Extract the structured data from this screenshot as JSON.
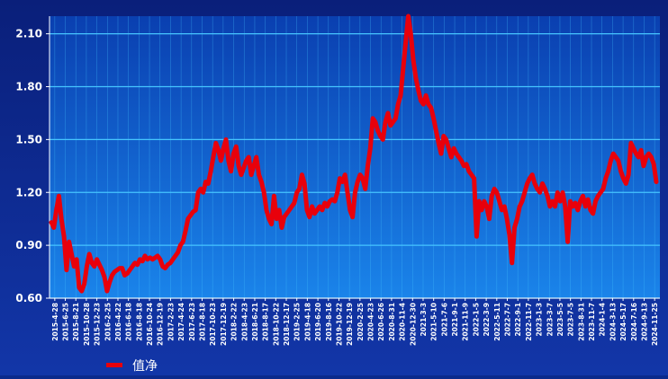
{
  "chart_data": {
    "type": "line",
    "title": "",
    "xlabel": "",
    "ylabel": "",
    "ylim": [
      0.6,
      2.2
    ],
    "y_ticks": [
      0.6,
      0.9,
      1.2,
      1.5,
      1.8,
      2.1
    ],
    "y_tick_labels": [
      "0.60",
      "0.90",
      "1.20",
      "1.50",
      "1.80",
      "2.10"
    ],
    "x_tick_labels": [
      "2015-4-28",
      "2015-6-25",
      "2015-8-21",
      "2015-10-28",
      "2015-12-23",
      "2016-2-25",
      "2016-4-22",
      "2016-6-18",
      "2016-8-18",
      "2016-10-24",
      "2016-12-19",
      "2017-2-23",
      "2017-4-24",
      "2017-6-23",
      "2017-8-18",
      "2017-10-23",
      "2017-12-19",
      "2018-2-22",
      "2018-4-23",
      "2018-6-21",
      "2018-8-17",
      "2018-10-22",
      "2018-12-17",
      "2019-2-25",
      "2019-4-18",
      "2019-6-20",
      "2019-8-16",
      "2019-10-22",
      "2019-12-19",
      "2020-2-25",
      "2020-4-23",
      "2020-6-26",
      "2020-8-31",
      "2020-11-4",
      "2020-12-30",
      "2021-3-3",
      "2021-5-10",
      "2021-7-6",
      "2021-9-1",
      "2021-11-9",
      "2022-1-5",
      "2022-3-9",
      "2022-5-11",
      "2022-7-7",
      "2022-9-1",
      "2022-11-7",
      "2023-1-3",
      "2023-3-7",
      "2023-5-5",
      "2023-7-5",
      "2023-8-31",
      "2023-11-7",
      "2024-1-4",
      "2024-3-13",
      "2024-5-17",
      "2024-7-16",
      "2024-9-13",
      "2024-11-25"
    ],
    "series": [
      {
        "name": "值净",
        "color": "#e8000b",
        "values": [
          1.03,
          1.0,
          1.1,
          1.18,
          1.05,
          0.95,
          0.76,
          0.92,
          0.85,
          0.78,
          0.82,
          0.66,
          0.64,
          0.68,
          0.78,
          0.85,
          0.8,
          0.78,
          0.82,
          0.79,
          0.76,
          0.72,
          0.64,
          0.69,
          0.73,
          0.75,
          0.76,
          0.77,
          0.77,
          0.73,
          0.74,
          0.76,
          0.78,
          0.8,
          0.79,
          0.82,
          0.81,
          0.84,
          0.82,
          0.83,
          0.82,
          0.83,
          0.84,
          0.82,
          0.78,
          0.77,
          0.79,
          0.8,
          0.82,
          0.84,
          0.86,
          0.9,
          0.92,
          0.98,
          1.05,
          1.07,
          1.09,
          1.1,
          1.2,
          1.22,
          1.2,
          1.26,
          1.25,
          1.32,
          1.4,
          1.48,
          1.44,
          1.38,
          1.45,
          1.5,
          1.38,
          1.32,
          1.42,
          1.46,
          1.35,
          1.3,
          1.34,
          1.38,
          1.4,
          1.3,
          1.35,
          1.4,
          1.3,
          1.26,
          1.2,
          1.1,
          1.05,
          1.02,
          1.18,
          1.05,
          1.1,
          1.0,
          1.06,
          1.08,
          1.1,
          1.12,
          1.14,
          1.2,
          1.22,
          1.3,
          1.25,
          1.1,
          1.06,
          1.12,
          1.08,
          1.1,
          1.12,
          1.1,
          1.14,
          1.12,
          1.15,
          1.16,
          1.15,
          1.2,
          1.28,
          1.26,
          1.3,
          1.2,
          1.1,
          1.06,
          1.2,
          1.26,
          1.3,
          1.28,
          1.22,
          1.35,
          1.45,
          1.62,
          1.6,
          1.55,
          1.52,
          1.5,
          1.6,
          1.65,
          1.58,
          1.6,
          1.62,
          1.7,
          1.75,
          1.9,
          2.05,
          2.2,
          2.1,
          1.95,
          1.85,
          1.78,
          1.72,
          1.7,
          1.75,
          1.7,
          1.68,
          1.62,
          1.55,
          1.48,
          1.42,
          1.52,
          1.5,
          1.45,
          1.4,
          1.45,
          1.42,
          1.4,
          1.38,
          1.35,
          1.36,
          1.32,
          1.3,
          1.28,
          0.95,
          1.15,
          1.1,
          1.15,
          1.12,
          1.05,
          1.18,
          1.22,
          1.2,
          1.15,
          1.1,
          1.12,
          1.05,
          0.96,
          0.8,
          1.0,
          1.05,
          1.12,
          1.15,
          1.2,
          1.25,
          1.28,
          1.3,
          1.25,
          1.22,
          1.2,
          1.25,
          1.22,
          1.18,
          1.12,
          1.15,
          1.12,
          1.2,
          1.15,
          1.2,
          1.12,
          0.92,
          1.15,
          1.12,
          1.14,
          1.1,
          1.15,
          1.18,
          1.12,
          1.16,
          1.1,
          1.08,
          1.15,
          1.18,
          1.2,
          1.22,
          1.28,
          1.32,
          1.38,
          1.42,
          1.4,
          1.38,
          1.32,
          1.28,
          1.25,
          1.3,
          1.48,
          1.45,
          1.42,
          1.4,
          1.44,
          1.35,
          1.4,
          1.42,
          1.4,
          1.36,
          1.26
        ]
      }
    ],
    "legend": {
      "position": "bottom-left"
    },
    "grid": true,
    "colors": {
      "background_outer": "#0b2a8c",
      "plot_background": "#0f6ad2",
      "grid_line": "#46c6ff",
      "axis_text": "#ffffff",
      "series": "#e8000b"
    }
  }
}
